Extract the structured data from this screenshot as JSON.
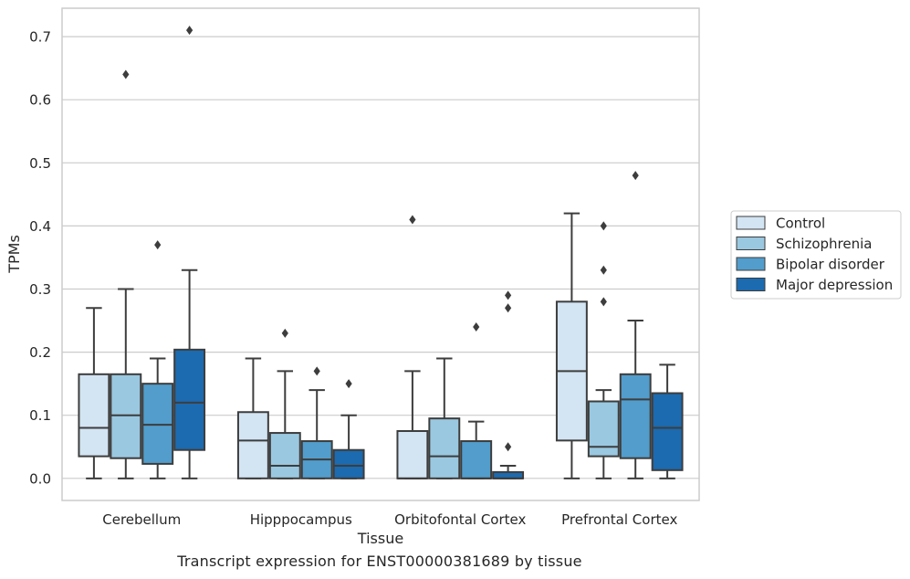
{
  "chart_data": {
    "type": "box",
    "xlabel": "Tissue",
    "ylabel": "TPMs",
    "caption": "Transcript expression for ENST00000381689 by tissue",
    "ylim": [
      -0.035,
      0.745
    ],
    "yticks": [
      0.0,
      0.1,
      0.2,
      0.3,
      0.4,
      0.5,
      0.6,
      0.7
    ],
    "ytick_labels": [
      "0.0",
      "0.1",
      "0.2",
      "0.3",
      "0.4",
      "0.5",
      "0.6",
      "0.7"
    ],
    "grid": "horizontal",
    "legend_position": "outside-right",
    "categories": [
      "Cerebellum",
      "Hipppocampus",
      "Orbitofontal Cortex",
      "Prefrontal Cortex"
    ],
    "series": [
      {
        "name": "Control",
        "color": "#d3e4f3",
        "boxes": [
          {
            "whislo": 0.0,
            "q1": 0.035,
            "med": 0.08,
            "q3": 0.165,
            "whishi": 0.27,
            "fliers": []
          },
          {
            "whislo": 0.0,
            "q1": 0.0,
            "med": 0.06,
            "q3": 0.105,
            "whishi": 0.19,
            "fliers": []
          },
          {
            "whislo": 0.0,
            "q1": 0.0,
            "med": 0.0,
            "q3": 0.075,
            "whishi": 0.17,
            "fliers": [
              0.41
            ]
          },
          {
            "whislo": 0.0,
            "q1": 0.06,
            "med": 0.17,
            "q3": 0.28,
            "whishi": 0.42,
            "fliers": []
          }
        ]
      },
      {
        "name": "Schizophrenia",
        "color": "#9ac8e0",
        "boxes": [
          {
            "whislo": 0.0,
            "q1": 0.032,
            "med": 0.1,
            "q3": 0.165,
            "whishi": 0.3,
            "fliers": [
              0.64
            ]
          },
          {
            "whislo": 0.0,
            "q1": 0.0,
            "med": 0.02,
            "q3": 0.072,
            "whishi": 0.17,
            "fliers": [
              0.23
            ]
          },
          {
            "whislo": 0.0,
            "q1": 0.0,
            "med": 0.035,
            "q3": 0.095,
            "whishi": 0.19,
            "fliers": []
          },
          {
            "whislo": 0.0,
            "q1": 0.035,
            "med": 0.05,
            "q3": 0.122,
            "whishi": 0.14,
            "fliers": [
              0.28,
              0.33,
              0.4
            ]
          }
        ]
      },
      {
        "name": "Bipolar disorder",
        "color": "#529dcc",
        "boxes": [
          {
            "whislo": 0.0,
            "q1": 0.023,
            "med": 0.085,
            "q3": 0.15,
            "whishi": 0.19,
            "fliers": [
              0.37
            ]
          },
          {
            "whislo": 0.0,
            "q1": 0.0,
            "med": 0.03,
            "q3": 0.059,
            "whishi": 0.14,
            "fliers": [
              0.17
            ]
          },
          {
            "whislo": 0.0,
            "q1": 0.0,
            "med": 0.0,
            "q3": 0.059,
            "whishi": 0.09,
            "fliers": [
              0.24
            ]
          },
          {
            "whislo": 0.0,
            "q1": 0.032,
            "med": 0.125,
            "q3": 0.165,
            "whishi": 0.25,
            "fliers": [
              0.48
            ]
          }
        ]
      },
      {
        "name": "Major depression",
        "color": "#1c6aaf",
        "boxes": [
          {
            "whislo": 0.0,
            "q1": 0.045,
            "med": 0.12,
            "q3": 0.204,
            "whishi": 0.33,
            "fliers": [
              0.71
            ]
          },
          {
            "whislo": 0.0,
            "q1": 0.0,
            "med": 0.02,
            "q3": 0.045,
            "whishi": 0.1,
            "fliers": [
              0.15
            ]
          },
          {
            "whislo": 0.0,
            "q1": 0.0,
            "med": 0.0,
            "q3": 0.01,
            "whishi": 0.02,
            "fliers": [
              0.05,
              0.27,
              0.29
            ]
          },
          {
            "whislo": 0.0,
            "q1": 0.013,
            "med": 0.08,
            "q3": 0.135,
            "whishi": 0.18,
            "fliers": []
          }
        ]
      }
    ]
  }
}
